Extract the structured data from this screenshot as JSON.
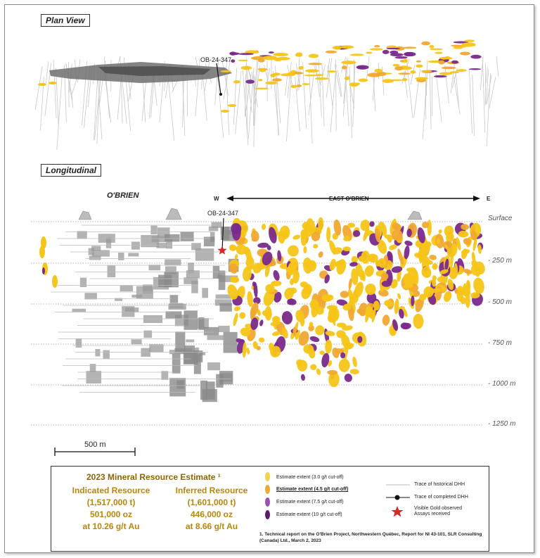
{
  "plan_view": {
    "title": "Plan View",
    "hole_label": "OB-24-347"
  },
  "longitudinal": {
    "title": "Longitudinal",
    "obrien_label": "O'BRIEN",
    "west_label": "W",
    "east_label": "E",
    "east_obrien_label": "EAST O'BRIEN",
    "hole_label": "OB-24-347",
    "depths": [
      "Surface",
      "- 250 m",
      "- 500 m",
      "- 750 m",
      "- 1000 m",
      "- 1250 m"
    ],
    "scale_label": "500 m"
  },
  "legend": {
    "title": "2023 Mineral Resource Estimate ¹",
    "indicated": {
      "heading": "Indicated Resource",
      "tonnes": "(1,517,000 t)",
      "ounces": "501,000 oz",
      "grade": "at 10.26 g/t Au"
    },
    "inferred": {
      "heading": "Inferred Resource",
      "tonnes": "(1,601,000 t)",
      "ounces": "446,000 oz",
      "grade": "at 8.66 g/t Au"
    },
    "extents": [
      {
        "label": "Estimate extent (3.0  g/t cut-off)",
        "color": "#f5d04a"
      },
      {
        "label": "Estimate extent (4.5  g/t cut-off)",
        "color": "#f0a830"
      },
      {
        "label": "Estimate extent (7.5 g/t cut-off)",
        "color": "#9b4fb5"
      },
      {
        "label": "Estimate extent (10 g/t cut-off)",
        "color": "#5e1a6e"
      }
    ],
    "symbols": {
      "historical": "Trace of historical DHH",
      "completed": "Trace of completed DHH",
      "visible_gold_1": "Visible Gold observed",
      "visible_gold_2": "Assays received"
    },
    "footnote": "1. Technical report on the O'Brien Project, Northwestern Québec, Report for NI 43-101, SLR Consulting (Canada) Ltd., March 2, 2023"
  },
  "colors": {
    "yellow": "#f5c518",
    "orange": "#f0a830",
    "purple": "#7a2a8c",
    "grey": "#9a9a9a",
    "red_star": "#d42a2a"
  }
}
